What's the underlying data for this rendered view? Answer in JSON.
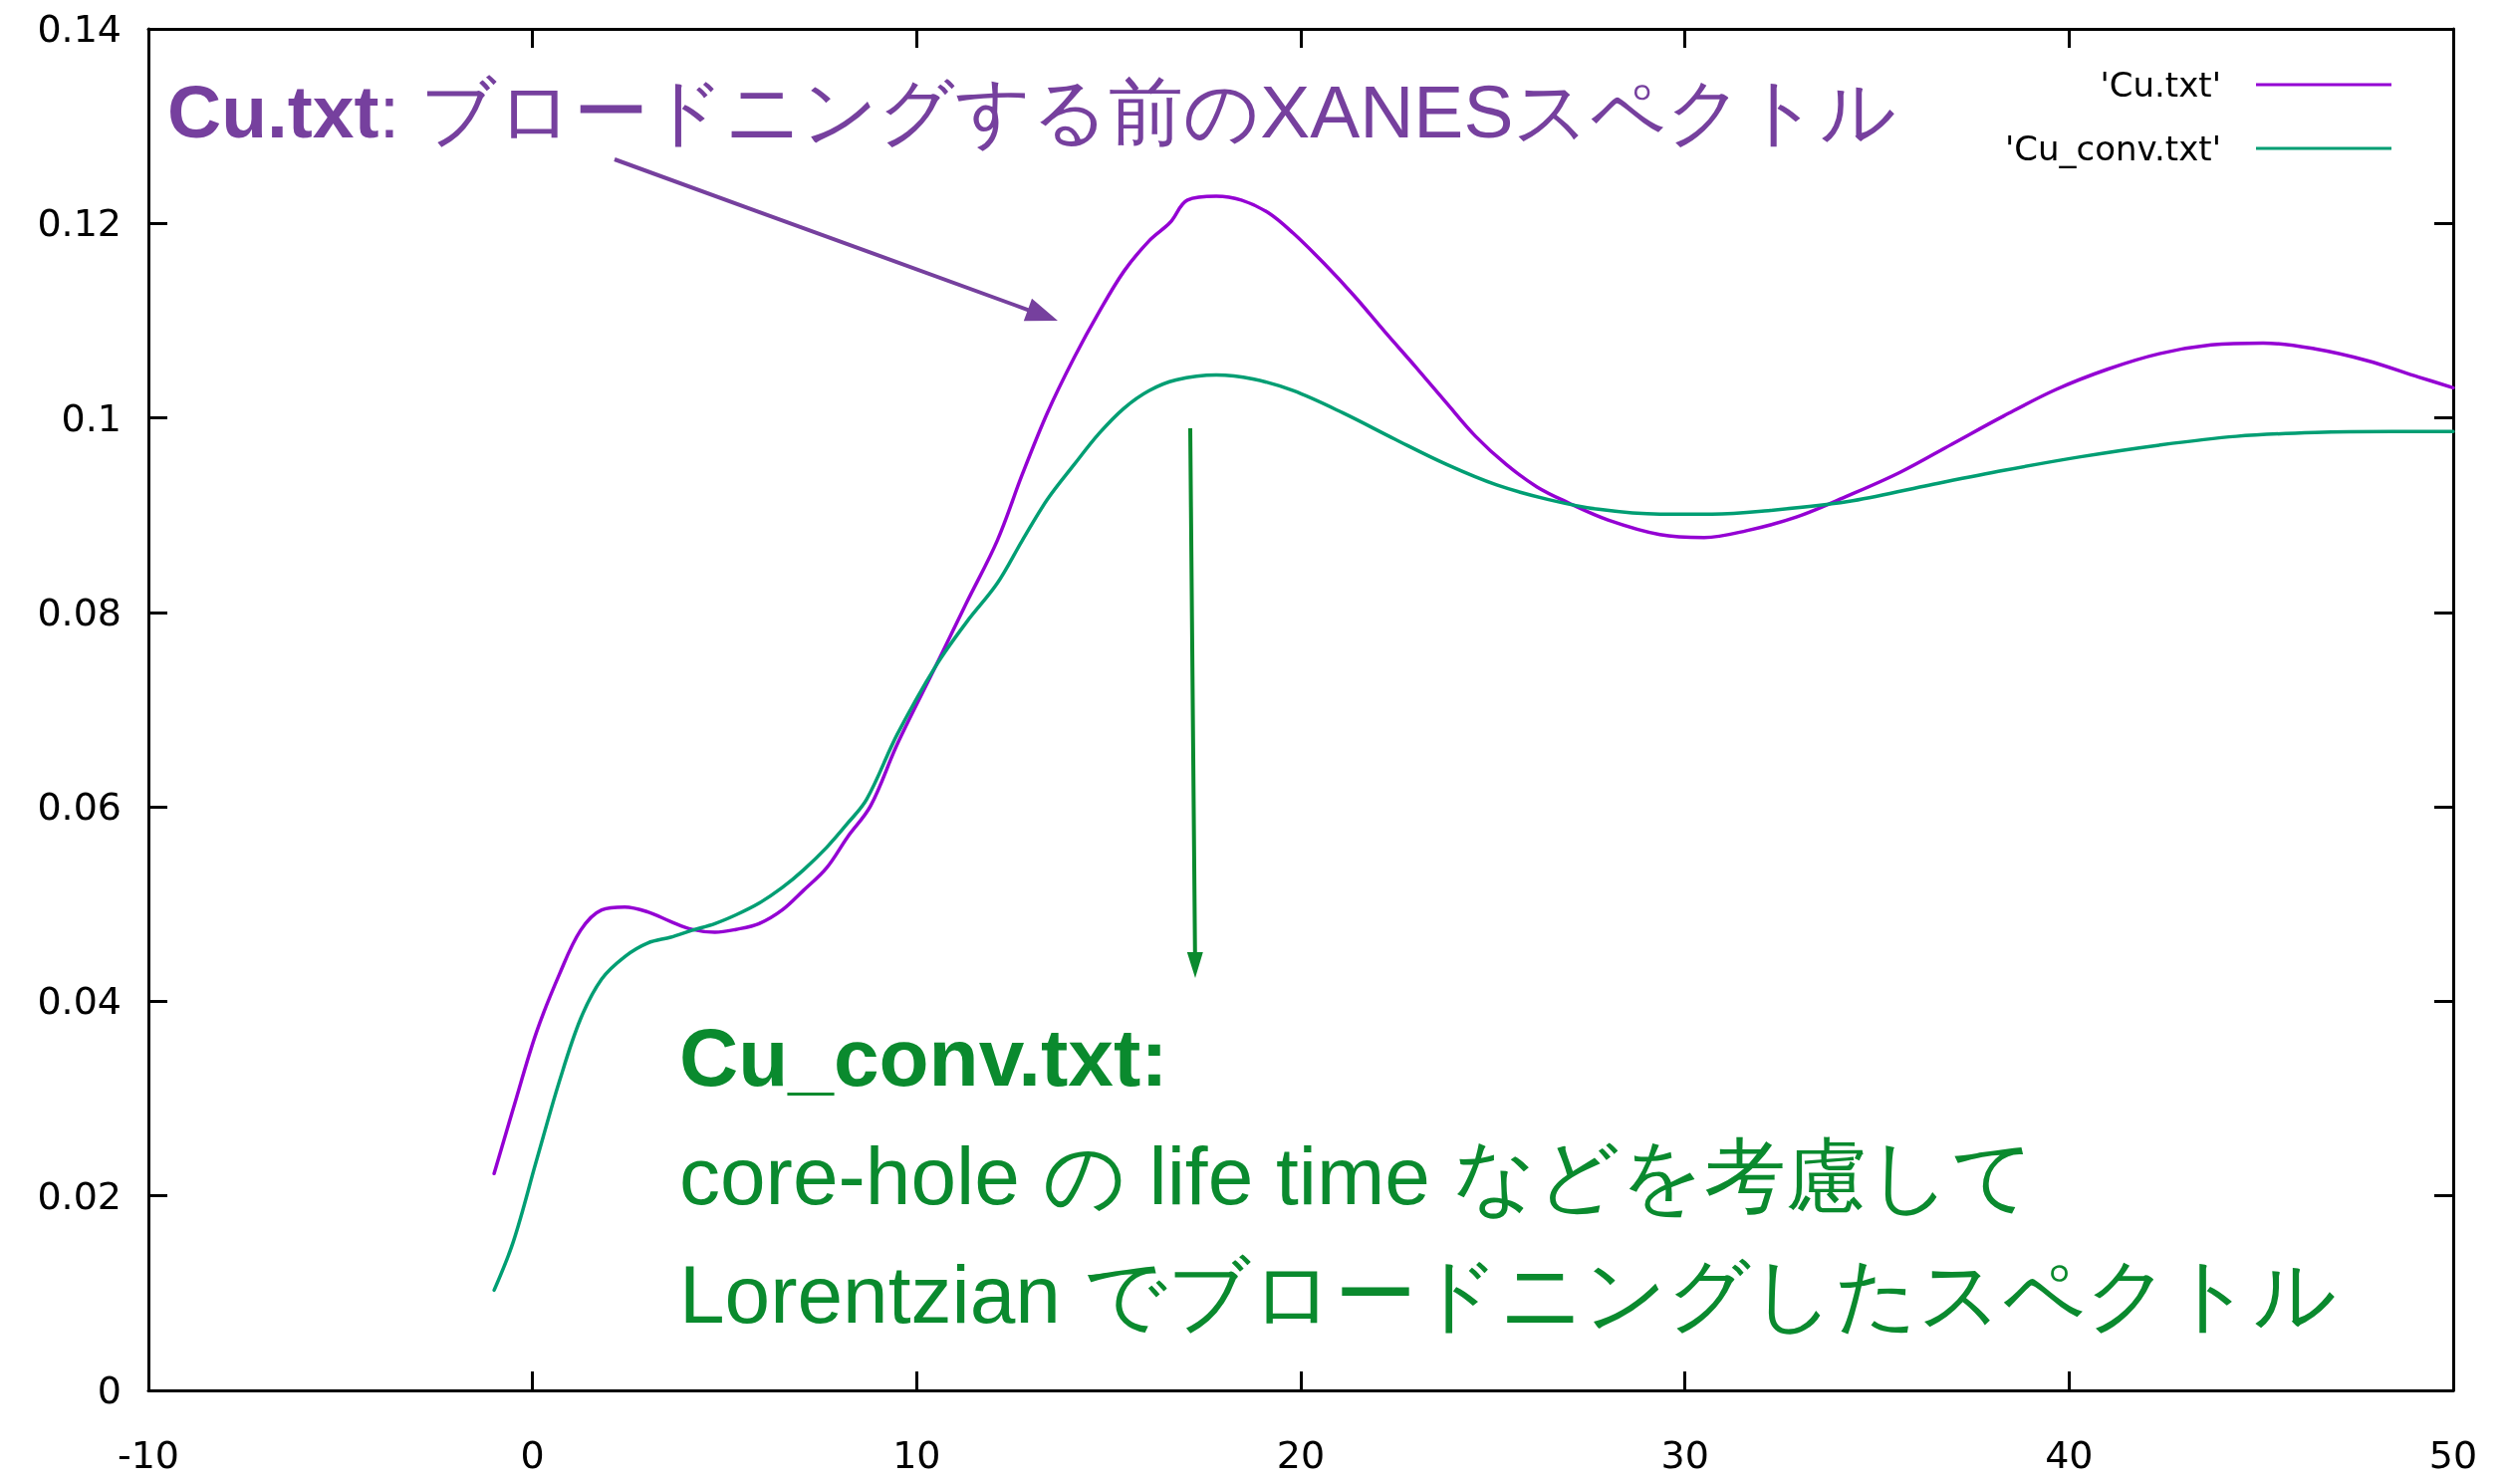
{
  "chart_data": {
    "type": "line",
    "xlim": [
      -10,
      50
    ],
    "xticks": [
      -10,
      0,
      10,
      20,
      30,
      40,
      50
    ],
    "ylim": [
      0,
      0.14
    ],
    "yticks": [
      0,
      0.02,
      0.04,
      0.06,
      0.08,
      0.1,
      0.12,
      0.14
    ],
    "legend": "top right",
    "series": [
      {
        "name": "'Cu.txt'",
        "color": "#9400d3",
        "x": [
          -1.0,
          -0.5,
          0.1,
          0.7,
          1.25,
          1.8,
          2.4,
          3.0,
          3.6,
          4.15,
          4.75,
          5.3,
          5.9,
          6.5,
          7.05,
          7.65,
          8.2,
          8.8,
          9.5,
          10.5,
          11.3,
          12.1,
          12.75,
          13.4,
          14.1,
          14.75,
          15.4,
          16.05,
          16.6,
          17.05,
          17.8,
          18.45,
          19.15,
          19.8,
          20.6,
          21.4,
          22.2,
          23.0,
          23.8,
          24.55,
          25.35,
          26.15,
          26.95,
          28.0,
          29.35,
          30.5,
          31.6,
          32.9,
          34.25,
          35.6,
          36.95,
          38.3,
          39.65,
          41.0,
          42.35,
          43.7,
          45.05,
          46.4,
          47.75,
          49.1,
          50.0
        ],
        "values": [
          0.0223,
          0.029,
          0.0368,
          0.0428,
          0.0473,
          0.0494,
          0.0497,
          0.0492,
          0.0482,
          0.0474,
          0.0471,
          0.0474,
          0.048,
          0.0494,
          0.0514,
          0.0537,
          0.0569,
          0.0601,
          0.0665,
          0.0745,
          0.081,
          0.0874,
          0.0942,
          0.1005,
          0.1062,
          0.1109,
          0.1151,
          0.1182,
          0.1201,
          0.1224,
          0.1228,
          0.1224,
          0.1211,
          0.119,
          0.1159,
          0.1125,
          0.1088,
          0.1052,
          0.1015,
          0.0981,
          0.0952,
          0.0929,
          0.0913,
          0.0895,
          0.088,
          0.0877,
          0.0884,
          0.0898,
          0.092,
          0.0944,
          0.0973,
          0.1002,
          0.1029,
          0.105,
          0.1066,
          0.1075,
          0.1077,
          0.1071,
          0.1059,
          0.1042,
          0.1031
        ]
      },
      {
        "name": "'Cu_conv.txt'",
        "color": "#009e73",
        "x": [
          -1.0,
          -0.5,
          0.1,
          0.7,
          1.25,
          1.8,
          2.4,
          3.0,
          3.6,
          4.15,
          4.75,
          5.3,
          5.9,
          6.5,
          7.05,
          7.65,
          8.2,
          8.7,
          9.5,
          10.5,
          11.3,
          12.1,
          12.75,
          13.4,
          14.1,
          14.75,
          15.4,
          16.05,
          16.75,
          17.8,
          18.75,
          19.8,
          21.1,
          22.45,
          23.8,
          25.1,
          26.45,
          27.75,
          29.35,
          30.7,
          32.0,
          34.25,
          36.25,
          38.3,
          40.3,
          42.35,
          44.35,
          46.4,
          48.4,
          50.0
        ],
        "values": [
          0.0103,
          0.0153,
          0.0236,
          0.0318,
          0.0382,
          0.0423,
          0.0446,
          0.046,
          0.0466,
          0.0473,
          0.048,
          0.0489,
          0.0501,
          0.0517,
          0.0535,
          0.0558,
          0.0583,
          0.0608,
          0.0675,
          0.0745,
          0.079,
          0.083,
          0.0874,
          0.0916,
          0.0952,
          0.0984,
          0.101,
          0.1028,
          0.1039,
          0.1044,
          0.104,
          0.1028,
          0.1005,
          0.0978,
          0.0952,
          0.0931,
          0.0916,
          0.0906,
          0.0901,
          0.0901,
          0.0904,
          0.0914,
          0.093,
          0.0946,
          0.096,
          0.0972,
          0.0981,
          0.0985,
          0.0986,
          0.0986
        ]
      }
    ],
    "annotations": [
      "Cu.txt: ブロードニングする前のXANESスペクトル",
      "Cu_conv.txt:\ncore-hole の life time などを考慮して\nLorentzian でブロードニングしたスペクトル"
    ]
  }
}
